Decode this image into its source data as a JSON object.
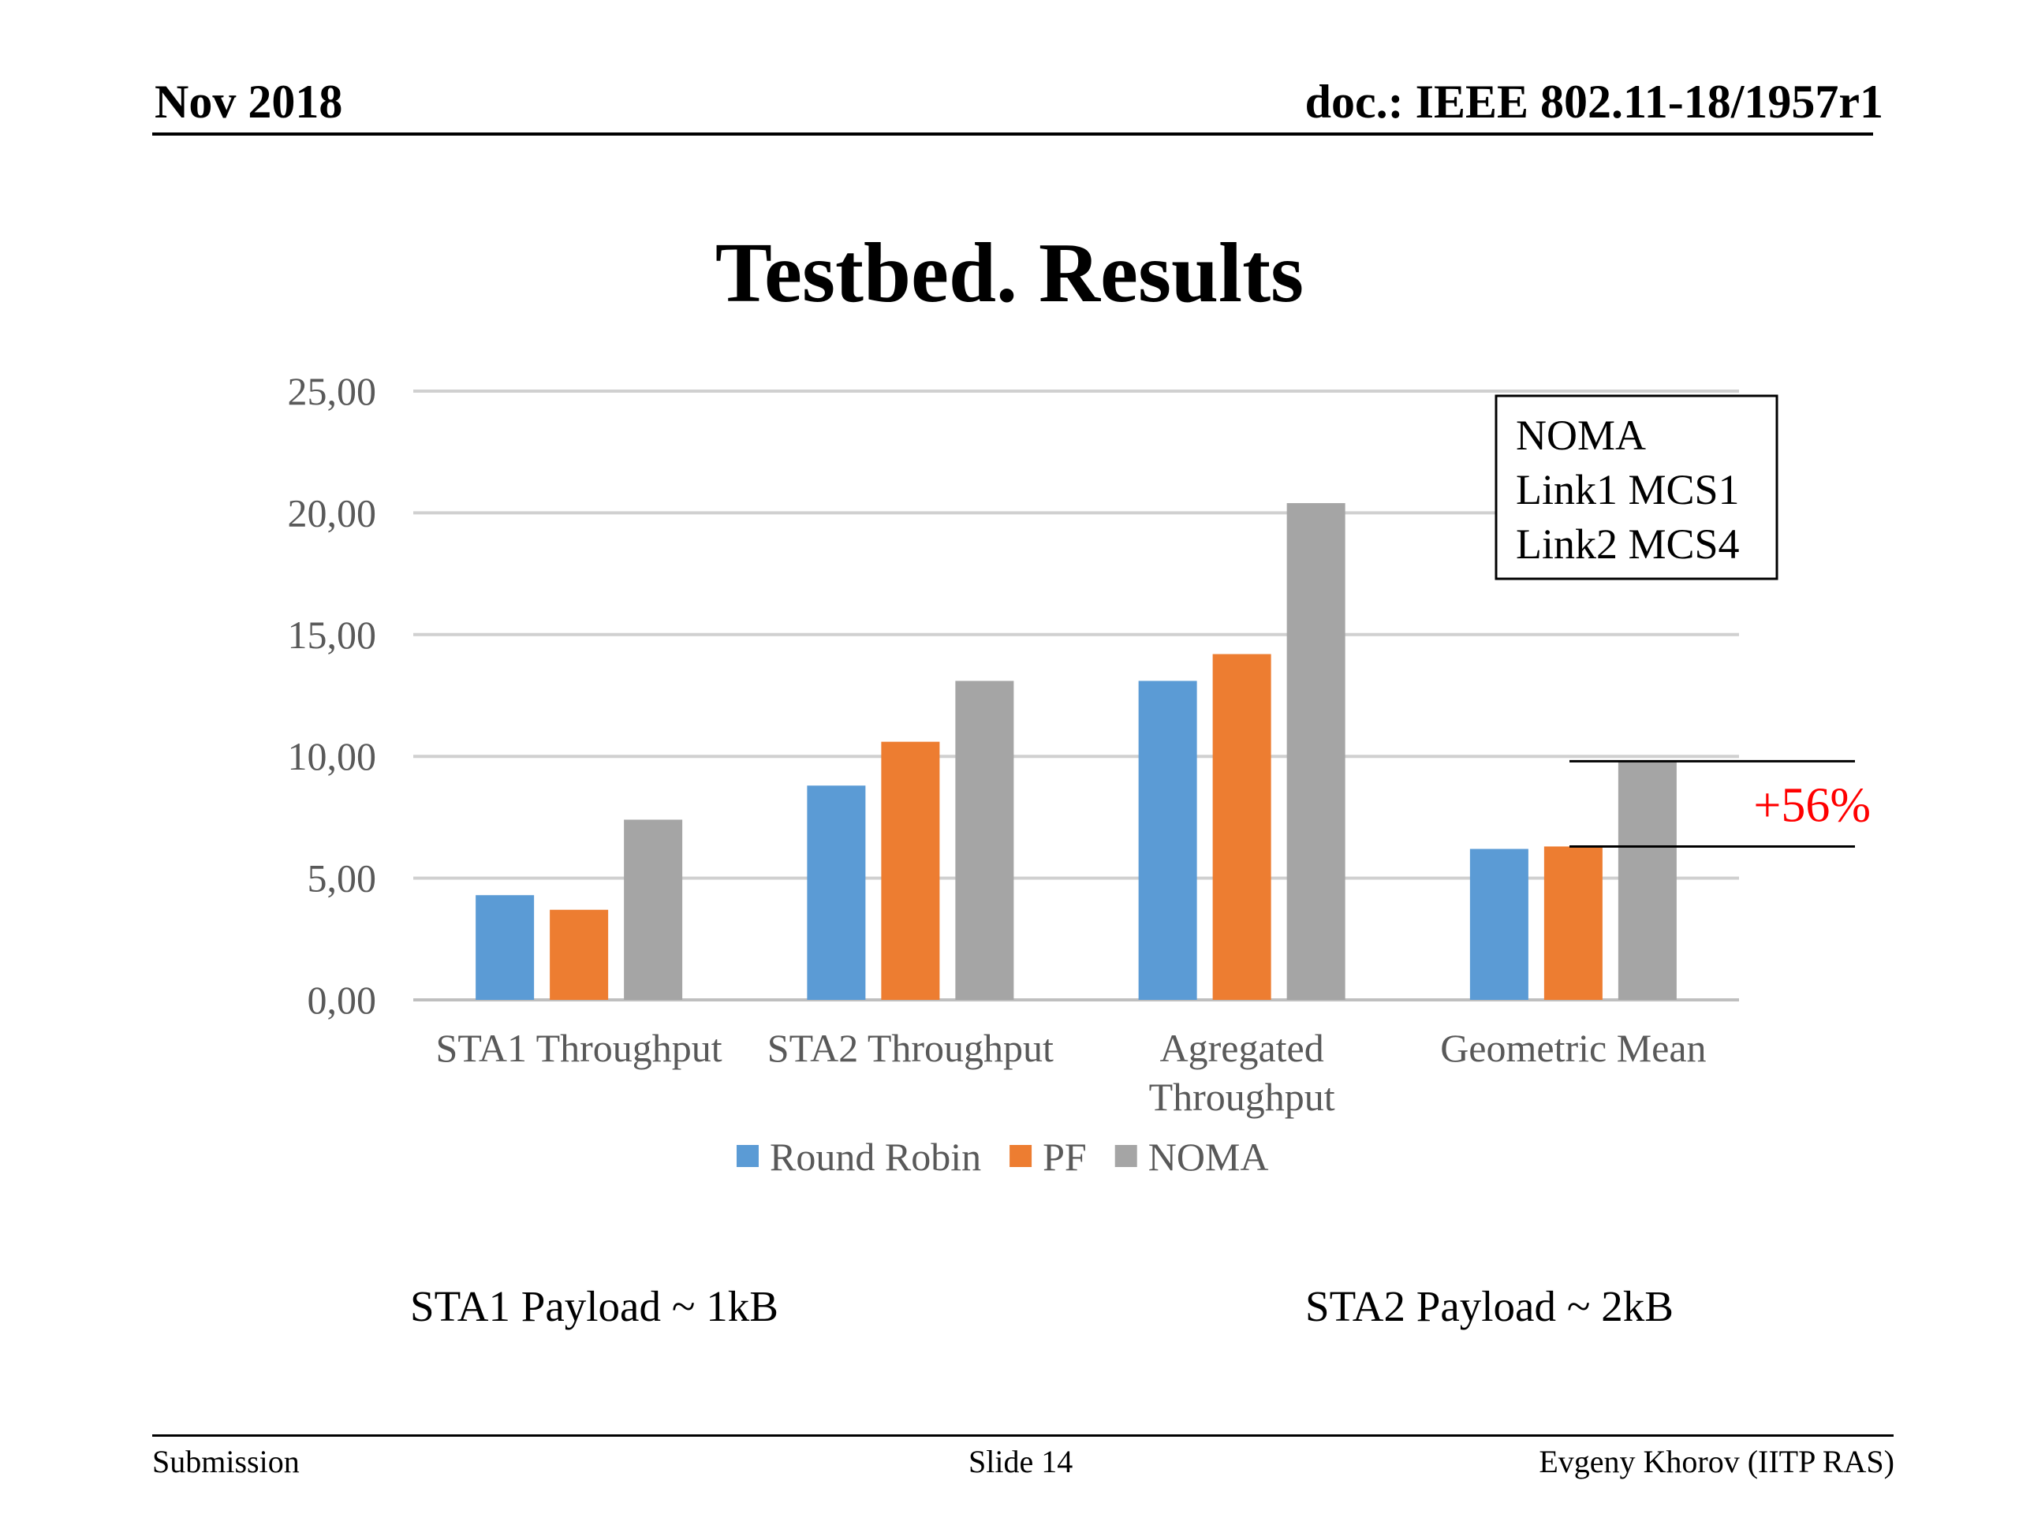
{
  "header": {
    "date": "Nov 2018",
    "doc": "doc.: IEEE 802.11-18/1957r1"
  },
  "slide": {
    "title": "Testbed. Results"
  },
  "chart_data": {
    "type": "bar",
    "categories": [
      "STA1 Throughput",
      "STA2 Throughput",
      "Agregated Throughput",
      "Geometric Mean"
    ],
    "category_lines": [
      [
        "STA1 Throughput"
      ],
      [
        "STA2 Throughput"
      ],
      [
        "Agregated",
        "Throughput"
      ],
      [
        "Geometric Mean"
      ]
    ],
    "series": [
      {
        "name": "Round Robin",
        "color": "#5b9bd5",
        "values": [
          4.3,
          8.8,
          13.1,
          6.2
        ]
      },
      {
        "name": "PF",
        "color": "#ed7d31",
        "values": [
          3.7,
          10.6,
          14.2,
          6.3
        ]
      },
      {
        "name": "NOMA",
        "color": "#a5a5a5",
        "values": [
          7.4,
          13.1,
          20.4,
          9.8
        ]
      }
    ],
    "ylim": [
      0,
      25
    ],
    "yticks": [
      "0,00",
      "5,00",
      "10,00",
      "15,00",
      "20,00",
      "25,00"
    ],
    "grid": true,
    "legend_position": "bottom",
    "annotation_box": [
      "NOMA",
      "Link1 MCS1",
      "Link2 MCS4"
    ],
    "improvement_label": "+56%",
    "improvement_color": "#ff0000"
  },
  "notes": {
    "sta1": "STA1 Payload ~ 1kB",
    "sta2": "STA2 Payload ~ 2kB"
  },
  "footer": {
    "left": "Submission",
    "center": "Slide 14",
    "right": "Evgeny Khorov (IITP RAS)"
  }
}
